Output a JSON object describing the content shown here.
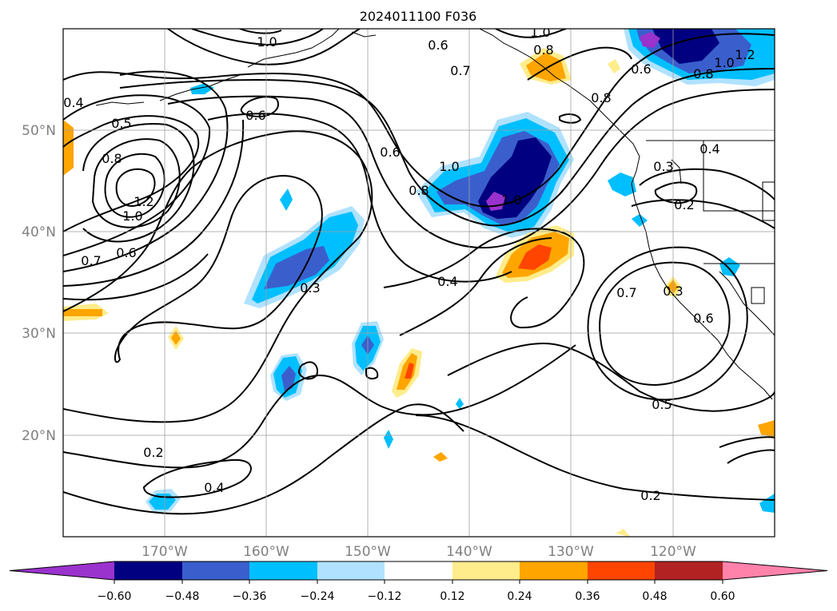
{
  "title": "2024011100 F036",
  "axes": {
    "lat_labels": [
      "50°N",
      "40°N",
      "30°N",
      "20°N"
    ],
    "lon_labels": [
      "170°W",
      "160°W",
      "150°W",
      "140°W",
      "130°W",
      "120°W"
    ]
  },
  "colorbar": {
    "tick_labels": [
      "−0.60",
      "−0.48",
      "−0.36",
      "−0.24",
      "−0.12",
      "0.12",
      "0.24",
      "0.36",
      "0.48",
      "0.60"
    ],
    "colors": [
      "#9a32cd",
      "#000080",
      "#3a5fcd",
      "#00bfff",
      "#b0e2ff",
      "#ffffff",
      "#ffec8b",
      "#ffa500",
      "#ff4500",
      "#b22222",
      "#ff82ab"
    ]
  },
  "contour_labels": {
    "c_0_4_a": "0.4",
    "c_0_5_a": "0.5",
    "c_0_8_a": "0.8",
    "c_1_0_a": "1.0",
    "c_1_2_a": "1.2",
    "c_0_7_a": "0.7",
    "c_0_6_a": "0.6",
    "c_0_6_b": "0.6",
    "c_1_0_b": "1.0",
    "c_0_6_c": "0.6",
    "c_0_7_b": "0.7",
    "c_1_0_c": "1.0",
    "c_0_8_b": "0.8",
    "c_0_6_d": "0.6",
    "c_0_8_c": "0.8",
    "c_1_0_d": "1.0",
    "c_1_2_b": "1.2",
    "c_0_8_d": "0.8",
    "c_1_0_e": "1.0",
    "c_0_6_e": "0.6",
    "c_0_8_e": "0.8",
    "c_0_4_b": "0.4",
    "c_0_3_a": "0.3",
    "c_0_2_a": "0.2",
    "c_1_0_f": "1.0",
    "c_0_3_b": "0.3",
    "c_0_4_c": "0.4",
    "c_0_3_c": "0.3",
    "c_0_7_c": "0.7",
    "c_0_6_f": "0.6",
    "c_0_5_b": "0.5",
    "c_0_2_b": "0.2",
    "c_0_4_d": "0.4",
    "c_0_2_c": "0.2"
  }
}
